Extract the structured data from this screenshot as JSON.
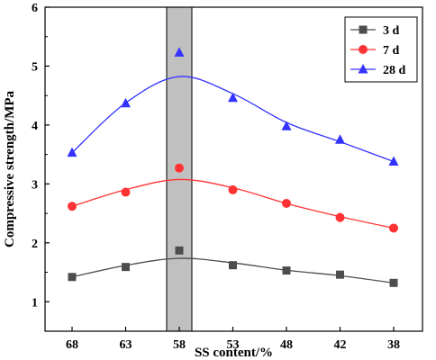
{
  "chart_data": {
    "type": "line",
    "xlabel": "SS content/%",
    "ylabel": "Compressive strength/MPa",
    "categories": [
      "68",
      "63",
      "58",
      "53",
      "48",
      "42",
      "38"
    ],
    "ylim": [
      0.5,
      6
    ],
    "yticks": [
      "1",
      "2",
      "3",
      "4",
      "5",
      "6"
    ],
    "highlight_band": {
      "category": "58",
      "color": "#c0c0c0"
    },
    "legend_position": "top-right",
    "series": [
      {
        "name": "3 d",
        "color": "#4d4d4d",
        "marker": "square",
        "values": [
          1.42,
          1.59,
          1.87,
          1.62,
          1.53,
          1.46,
          1.32
        ]
      },
      {
        "name": "7 d",
        "color": "#ff3333",
        "marker": "circle",
        "values": [
          2.62,
          2.86,
          3.27,
          2.9,
          2.67,
          2.43,
          2.25
        ]
      },
      {
        "name": "28 d",
        "color": "#3333ff",
        "marker": "triangle",
        "values": [
          3.53,
          4.37,
          5.23,
          4.46,
          3.98,
          3.75,
          3.38
        ]
      }
    ]
  }
}
